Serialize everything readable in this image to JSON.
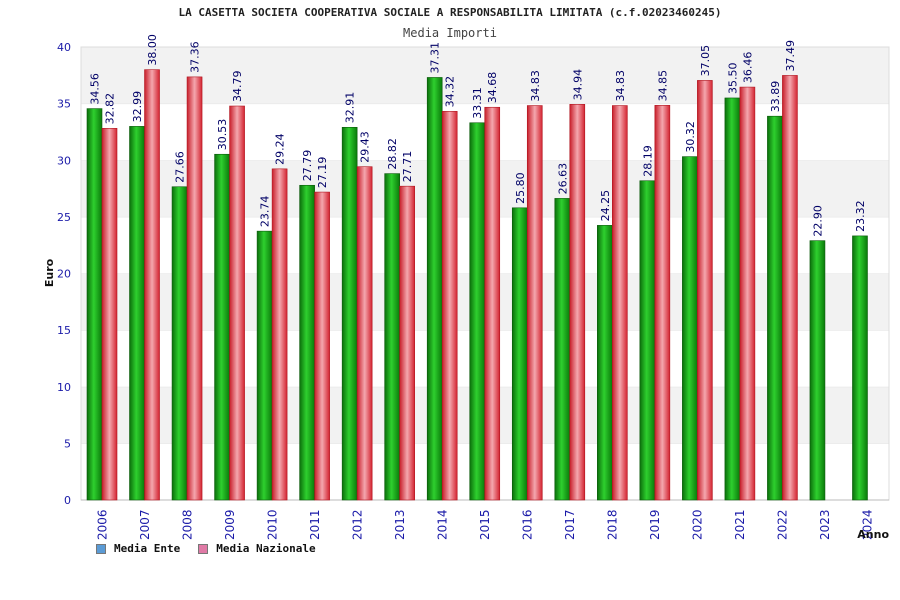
{
  "chart_data": {
    "type": "bar",
    "title": "LA CASETTA SOCIETA COOPERATIVA SOCIALE A RESPONSABILITA LIMITATA (c.f.02023460245)",
    "subtitle": "Media Importi",
    "xlabel": "Anno",
    "ylabel": "Euro",
    "ylim": [
      0,
      40
    ],
    "yticks": [
      "0",
      "5",
      "10",
      "15",
      "20",
      "25",
      "30",
      "35",
      "40"
    ],
    "grid": "horizontal bands",
    "legend_position": "bottom-left",
    "categories": [
      "2006",
      "2007",
      "2008",
      "2009",
      "2010",
      "2011",
      "2012",
      "2013",
      "2014",
      "2015",
      "2016",
      "2017",
      "2018",
      "2019",
      "2020",
      "2021",
      "2022",
      "2023",
      "2024"
    ],
    "series": [
      {
        "name": "Media Ente",
        "legend_color": "#5b9bd5",
        "bar_color": "#1fa51f",
        "values": [
          34.56,
          32.99,
          27.66,
          30.53,
          23.74,
          27.79,
          32.91,
          28.82,
          37.31,
          33.31,
          25.8,
          26.63,
          24.25,
          28.19,
          30.32,
          35.5,
          33.89,
          22.9,
          23.32
        ],
        "labels": [
          "34.56",
          "32.99",
          "27.66",
          "30.53",
          "23.74",
          "27.79",
          "32.91",
          "28.82",
          "37.31",
          "33.31",
          "25.80",
          "26.63",
          "24.25",
          "28.19",
          "30.32",
          "35.50",
          "33.89",
          "22.90",
          "23.32"
        ]
      },
      {
        "name": "Media Nazionale",
        "legend_color": "#e07aa6",
        "bar_color": "#e8343f",
        "values": [
          32.82,
          38.0,
          37.36,
          34.79,
          29.24,
          27.19,
          29.43,
          27.71,
          34.32,
          34.68,
          34.83,
          34.94,
          34.83,
          34.85,
          37.05,
          36.46,
          37.49,
          null,
          null
        ],
        "labels": [
          "32.82",
          "38.00",
          "37.36",
          "34.79",
          "29.24",
          "27.19",
          "29.43",
          "27.71",
          "34.32",
          "34.68",
          "34.83",
          "34.94",
          "34.83",
          "34.85",
          "37.05",
          "36.46",
          "37.49",
          null,
          null
        ]
      }
    ]
  }
}
